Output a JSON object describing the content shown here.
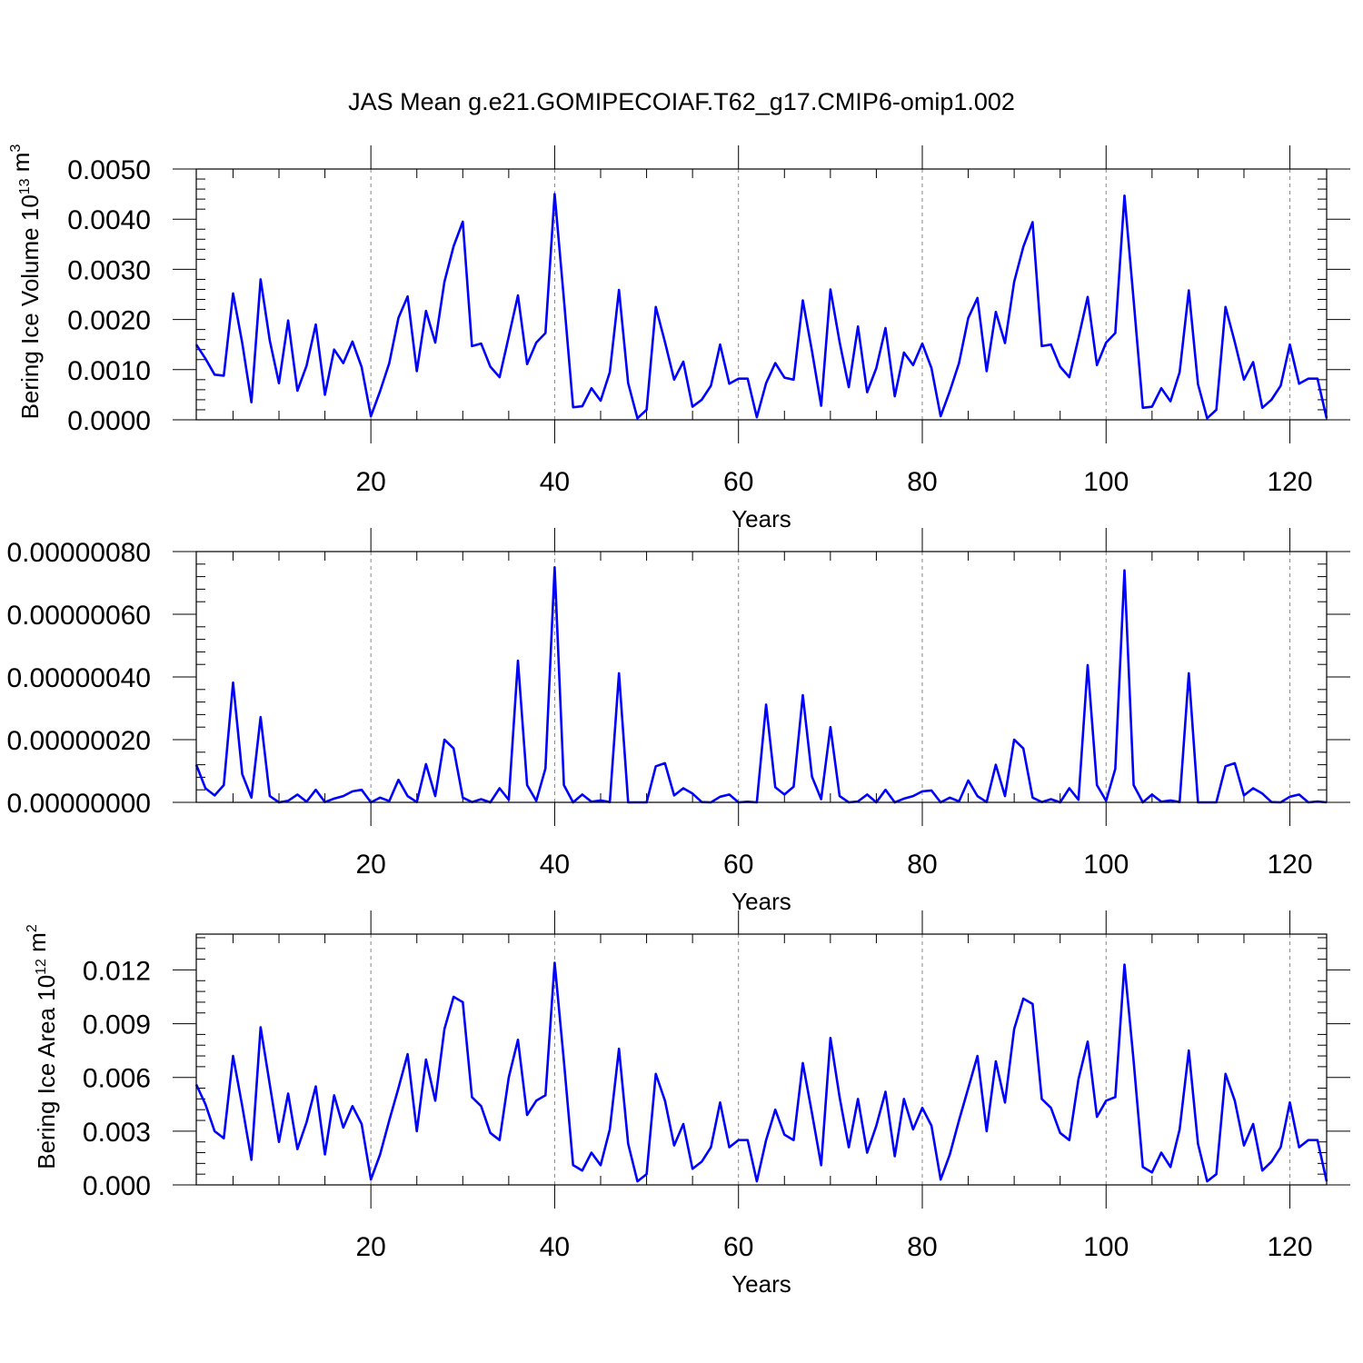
{
  "title": "JAS Mean g.e21.GOMIPECOIAF.T62_g17.CMIP6-omip1.002",
  "colors": {
    "series": "#0000ff",
    "grid": "#888888"
  },
  "chart_data": [
    {
      "type": "line",
      "ylabel": "Bering Ice Volume 10",
      "ylabel_sup": "13",
      "ylabel_unit": " m",
      "ylabel_unit_sup": "3",
      "xlabel": "Years",
      "xlim": [
        1,
        124
      ],
      "ylim": [
        0,
        0.005
      ],
      "xticks": [
        20,
        40,
        60,
        80,
        100,
        120
      ],
      "xtick_labels": [
        "20",
        "40",
        "60",
        "80",
        "100",
        "120"
      ],
      "yticks": [
        0,
        0.001,
        0.002,
        0.003,
        0.004,
        0.005
      ],
      "ytick_labels": [
        "0.0000",
        "0.0010",
        "0.0020",
        "0.0030",
        "0.0040",
        "0.0050"
      ],
      "grid": "vertical dashed at major x ticks",
      "x_start": 1,
      "values": [
        0.0015,
        0.00122,
        0.0009,
        0.00088,
        0.00252,
        0.00153,
        0.00035,
        0.0028,
        0.00158,
        0.00073,
        0.00198,
        0.00058,
        0.00108,
        0.0019,
        0.0005,
        0.0014,
        0.00113,
        0.00156,
        0.00105,
        7e-05,
        0.00057,
        0.00113,
        0.00203,
        0.00246,
        0.00097,
        0.00217,
        0.00154,
        0.00275,
        0.00346,
        0.00395,
        0.00147,
        0.00152,
        0.00106,
        0.00085,
        0.00166,
        0.00248,
        0.00111,
        0.00154,
        0.00173,
        0.0045,
        0.0024,
        0.00025,
        0.00027,
        0.00063,
        0.00038,
        0.00095,
        0.00259,
        0.00073,
        3e-05,
        0.0002,
        0.00225,
        0.00155,
        0.0008,
        0.00116,
        0.00026,
        0.0004,
        0.00068,
        0.0015,
        0.00072,
        0.00082,
        0.00082,
        5e-05,
        0.00073,
        0.00113,
        0.00084,
        0.0008,
        0.00238,
        0.00137,
        0.00028,
        0.0026,
        0.00155,
        0.00065,
        0.00186,
        0.00055,
        0.00103,
        0.00183,
        0.00047,
        0.00134,
        0.00109,
        0.00152,
        0.00103,
        7e-05,
        0.00057,
        0.00113,
        0.00203,
        0.00243,
        0.00097,
        0.00215,
        0.00153,
        0.00275,
        0.00345,
        0.00394,
        0.00147,
        0.0015,
        0.00106,
        0.00085,
        0.00163,
        0.00245,
        0.00109,
        0.00154,
        0.00173,
        0.00447,
        0.00238,
        0.00024,
        0.00026,
        0.00063,
        0.00037,
        0.00095,
        0.00258,
        0.00071,
        3e-05,
        0.0002,
        0.00225,
        0.00155,
        0.0008,
        0.00115,
        0.00024,
        0.0004,
        0.00068,
        0.0015,
        0.00072,
        0.00082,
        0.00082,
        3e-05
      ]
    },
    {
      "type": "line",
      "ylabel": "",
      "xlabel": "Years",
      "xlim": [
        1,
        124
      ],
      "ylim": [
        0,
        8e-07
      ],
      "xticks": [
        20,
        40,
        60,
        80,
        100,
        120
      ],
      "xtick_labels": [
        "20",
        "40",
        "60",
        "80",
        "100",
        "120"
      ],
      "yticks": [
        0,
        2e-07,
        4e-07,
        6e-07,
        8e-07
      ],
      "ytick_labels": [
        "0.00000000",
        "0.00000020",
        "0.00000040",
        "0.00000060",
        "0.00000080"
      ],
      "grid": "vertical dashed at major x ticks",
      "x_start": 1,
      "values": [
        1.2e-07,
        4.5e-08,
        2.2e-08,
        5.5e-08,
        3.82e-07,
        9e-08,
        1.5e-08,
        2.72e-07,
        2e-08,
        0,
        5e-09,
        2.5e-08,
        2e-09,
        4e-08,
        1e-09,
        1.2e-08,
        2e-08,
        3.5e-08,
        4e-08,
        0,
        1.5e-08,
        4e-09,
        7.2e-08,
        2e-08,
        1e-09,
        1.22e-07,
        2e-08,
        2e-07,
        1.72e-07,
        1.5e-08,
        1e-09,
        1e-08,
        0,
        4.5e-08,
        8e-09,
        4.52e-07,
        5.5e-08,
        5e-09,
        1.08e-07,
        7.5e-07,
        5.5e-08,
        0,
        2.5e-08,
        2e-09,
        6e-09,
        1e-09,
        4.12e-07,
        0,
        0,
        0,
        1.15e-07,
        1.25e-07,
        2.2e-08,
        4.5e-08,
        2.8e-08,
        1e-09,
        0,
        1.8e-08,
        2.5e-08,
        0,
        2e-09,
        0,
        3.12e-07,
        4.8e-08,
        2.5e-08,
        5e-08,
        3.42e-07,
        8.2e-08,
        1e-08,
        2.4e-07,
        2e-08,
        0,
        3e-09,
        2.5e-08,
        0,
        4e-08,
        0,
        1.2e-08,
        2e-08,
        3.5e-08,
        3.8e-08,
        0,
        1.5e-08,
        3e-09,
        7e-08,
        2e-08,
        1e-09,
        1.2e-07,
        2e-08,
        2e-07,
        1.72e-07,
        1.5e-08,
        1e-09,
        1e-08,
        0,
        4.5e-08,
        8e-09,
        4.38e-07,
        5.5e-08,
        5e-09,
        1.07e-07,
        7.4e-07,
        5.5e-08,
        0,
        2.5e-08,
        2e-09,
        6e-09,
        1e-09,
        4.12e-07,
        0,
        0,
        0,
        1.15e-07,
        1.25e-07,
        2.2e-08,
        4.5e-08,
        2.8e-08,
        1e-09,
        0,
        1.8e-08,
        2.5e-08,
        0,
        3e-09,
        0
      ]
    },
    {
      "type": "line",
      "ylabel": "Bering Ice Area 10",
      "ylabel_sup": "12",
      "ylabel_unit": " m",
      "ylabel_unit_sup": "2",
      "xlabel": "Years",
      "xlim": [
        1,
        124
      ],
      "ylim": [
        0,
        0.014
      ],
      "xticks": [
        20,
        40,
        60,
        80,
        100,
        120
      ],
      "xtick_labels": [
        "20",
        "40",
        "60",
        "80",
        "100",
        "120"
      ],
      "yticks": [
        0,
        0.003,
        0.006,
        0.009,
        0.012
      ],
      "ytick_labels": [
        "0.000",
        "0.003",
        "0.006",
        "0.009",
        "0.012"
      ],
      "grid": "vertical dashed at major x ticks",
      "x_start": 1,
      "values": [
        0.0056,
        0.0045,
        0.003,
        0.0026,
        0.0072,
        0.0044,
        0.0014,
        0.0088,
        0.0056,
        0.0024,
        0.0051,
        0.002,
        0.0035,
        0.0055,
        0.0017,
        0.005,
        0.0032,
        0.0044,
        0.0034,
        0.0003,
        0.0017,
        0.0036,
        0.0054,
        0.0073,
        0.003,
        0.007,
        0.0047,
        0.0087,
        0.0105,
        0.0102,
        0.0049,
        0.0044,
        0.0029,
        0.0025,
        0.006,
        0.0081,
        0.0039,
        0.0047,
        0.005,
        0.0124,
        0.0069,
        0.0011,
        0.0008,
        0.0018,
        0.0011,
        0.0031,
        0.0076,
        0.0023,
        0.0002,
        0.0006,
        0.0062,
        0.0047,
        0.0022,
        0.0034,
        0.0009,
        0.0013,
        0.0021,
        0.0046,
        0.0021,
        0.0025,
        0.0025,
        0.0002,
        0.0025,
        0.0042,
        0.0028,
        0.0025,
        0.0068,
        0.004,
        0.0011,
        0.0082,
        0.0049,
        0.0021,
        0.0048,
        0.0018,
        0.0033,
        0.0052,
        0.0016,
        0.0048,
        0.0031,
        0.0043,
        0.0033,
        0.0003,
        0.0017,
        0.0036,
        0.0054,
        0.0072,
        0.003,
        0.0069,
        0.0046,
        0.0087,
        0.0104,
        0.0101,
        0.0048,
        0.0043,
        0.0029,
        0.0025,
        0.0059,
        0.008,
        0.0038,
        0.0047,
        0.0049,
        0.0123,
        0.0069,
        0.001,
        0.0007,
        0.0018,
        0.001,
        0.0031,
        0.0075,
        0.0023,
        0.0002,
        0.0006,
        0.0062,
        0.0047,
        0.0022,
        0.0034,
        0.0008,
        0.0013,
        0.0021,
        0.0046,
        0.0021,
        0.0025,
        0.0025,
        0.0002
      ]
    }
  ]
}
